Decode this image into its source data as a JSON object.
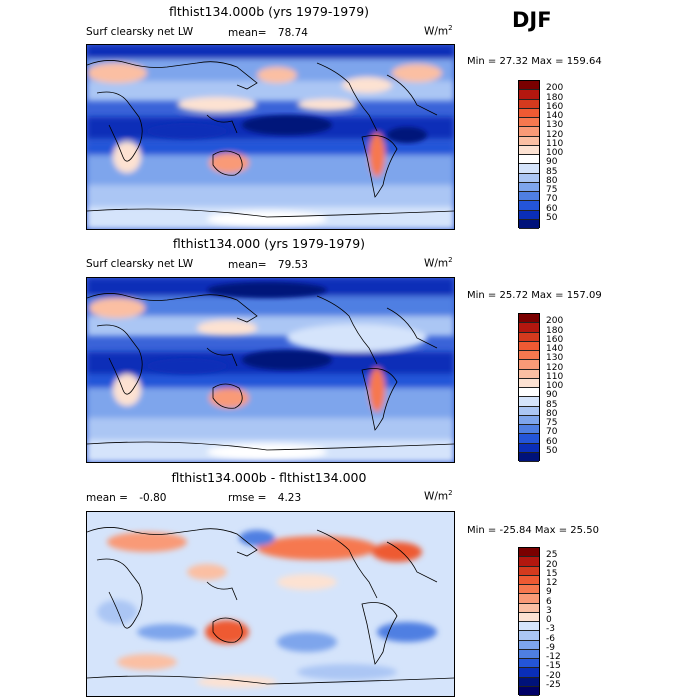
{
  "season": "DJF",
  "panels": [
    {
      "title": "flthist134.000b (yrs 1979-1979)",
      "field_label": "Surf clearsky net LW",
      "mean_label": "mean=",
      "mean_value": "78.74",
      "units": "W/m",
      "units_exp": "2",
      "min_max": "Min =  27.32 Max = 159.64"
    },
    {
      "title": "flthist134.000 (yrs 1979-1979)",
      "field_label": "Surf clearsky net LW",
      "mean_label": "mean=",
      "mean_value": "79.53",
      "units": "W/m",
      "units_exp": "2",
      "min_max": "Min =  25.72 Max = 157.09"
    },
    {
      "title": "flthist134.000b - flthist134.000",
      "mean_label": "mean =",
      "mean_value": "-0.80",
      "rmse_label": "rmse =",
      "rmse_value": "4.23",
      "units": "W/m",
      "units_exp": "2",
      "min_max": "Min = -25.84 Max =  25.50"
    }
  ],
  "colorbar_abs": {
    "labels": [
      "200",
      "180",
      "160",
      "140",
      "130",
      "120",
      "110",
      "100",
      "90",
      "85",
      "80",
      "75",
      "70",
      "60",
      "50"
    ],
    "colors": [
      "#7a0000",
      "#b3170f",
      "#d43a1e",
      "#ee5a33",
      "#f6784f",
      "#f99a77",
      "#fbbfa3",
      "#fde2d2",
      "#ffffff",
      "#d5e4fb",
      "#abc6f4",
      "#7ea5ec",
      "#4f7fe2",
      "#2455d8",
      "#0a2eb8",
      "#00127a"
    ]
  },
  "colorbar_diff": {
    "labels": [
      "25",
      "20",
      "15",
      "12",
      "9",
      "6",
      "3",
      "0",
      "-3",
      "-6",
      "-9",
      "-12",
      "-15",
      "-20",
      "-25"
    ],
    "colors": [
      "#7a0000",
      "#b3170f",
      "#d43a1e",
      "#ee5a33",
      "#f6784f",
      "#f99a77",
      "#fbbfa3",
      "#fde2d2",
      "#d5e4fb",
      "#abc6f4",
      "#7ea5ec",
      "#4f7fe2",
      "#2455d8",
      "#0a2eb8",
      "#00127a",
      "#000066"
    ]
  },
  "chart_data": [
    {
      "type": "heatmap",
      "title": "flthist134.000b (yrs 1979-1979)",
      "subtitle": "Surf clearsky net LW",
      "season": "DJF",
      "units": "W/m2",
      "mean": 78.74,
      "min": 27.32,
      "max": 159.64,
      "contour_levels": [
        50,
        60,
        70,
        75,
        80,
        85,
        90,
        100,
        110,
        120,
        130,
        140,
        160,
        180,
        200
      ]
    },
    {
      "type": "heatmap",
      "title": "flthist134.000 (yrs 1979-1979)",
      "subtitle": "Surf clearsky net LW",
      "season": "DJF",
      "units": "W/m2",
      "mean": 79.53,
      "min": 25.72,
      "max": 157.09,
      "contour_levels": [
        50,
        60,
        70,
        75,
        80,
        85,
        90,
        100,
        110,
        120,
        130,
        140,
        160,
        180,
        200
      ]
    },
    {
      "type": "heatmap",
      "title": "flthist134.000b - flthist134.000",
      "season": "DJF",
      "units": "W/m2",
      "mean": -0.8,
      "rmse": 4.23,
      "min": -25.84,
      "max": 25.5,
      "contour_levels": [
        -25,
        -20,
        -15,
        -12,
        -9,
        -6,
        -3,
        0,
        3,
        6,
        9,
        12,
        15,
        20,
        25
      ]
    }
  ]
}
